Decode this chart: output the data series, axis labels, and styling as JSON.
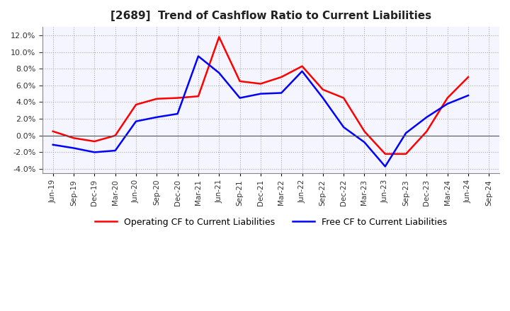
{
  "title": "[2689]  Trend of Cashflow Ratio to Current Liabilities",
  "x_labels": [
    "Jun-19",
    "Sep-19",
    "Dec-19",
    "Mar-20",
    "Jun-20",
    "Sep-20",
    "Dec-20",
    "Mar-21",
    "Jun-21",
    "Sep-21",
    "Dec-21",
    "Mar-22",
    "Jun-22",
    "Sep-22",
    "Dec-22",
    "Mar-23",
    "Jun-23",
    "Sep-23",
    "Dec-23",
    "Mar-24",
    "Jun-24",
    "Sep-24"
  ],
  "operating_cf": [
    0.5,
    -0.3,
    -0.7,
    0.0,
    3.7,
    4.4,
    4.5,
    4.7,
    11.8,
    6.5,
    6.2,
    7.0,
    8.3,
    5.5,
    4.5,
    0.5,
    -2.2,
    -2.2,
    0.5,
    4.5,
    7.0,
    null
  ],
  "free_cf": [
    -1.1,
    -1.5,
    -2.0,
    -1.8,
    1.7,
    2.2,
    2.6,
    9.5,
    7.5,
    4.5,
    5.0,
    5.1,
    7.7,
    4.5,
    1.0,
    -0.8,
    -3.7,
    0.3,
    2.2,
    3.8,
    4.8,
    null
  ],
  "ylim": [
    -4.5,
    13.0
  ],
  "yticks": [
    -4.0,
    -2.0,
    0.0,
    2.0,
    4.0,
    6.0,
    8.0,
    10.0,
    12.0
  ],
  "operating_color": "#FF0000",
  "free_color": "#0000FF",
  "background_color": "#FFFFFF",
  "plot_bg_color": "#F5F5FF",
  "grid_color": "#AAAAAA",
  "zero_line_color": "#555555",
  "legend_operating": "Operating CF to Current Liabilities",
  "legend_free": "Free CF to Current Liabilities",
  "title_bracket_color": "#333333"
}
